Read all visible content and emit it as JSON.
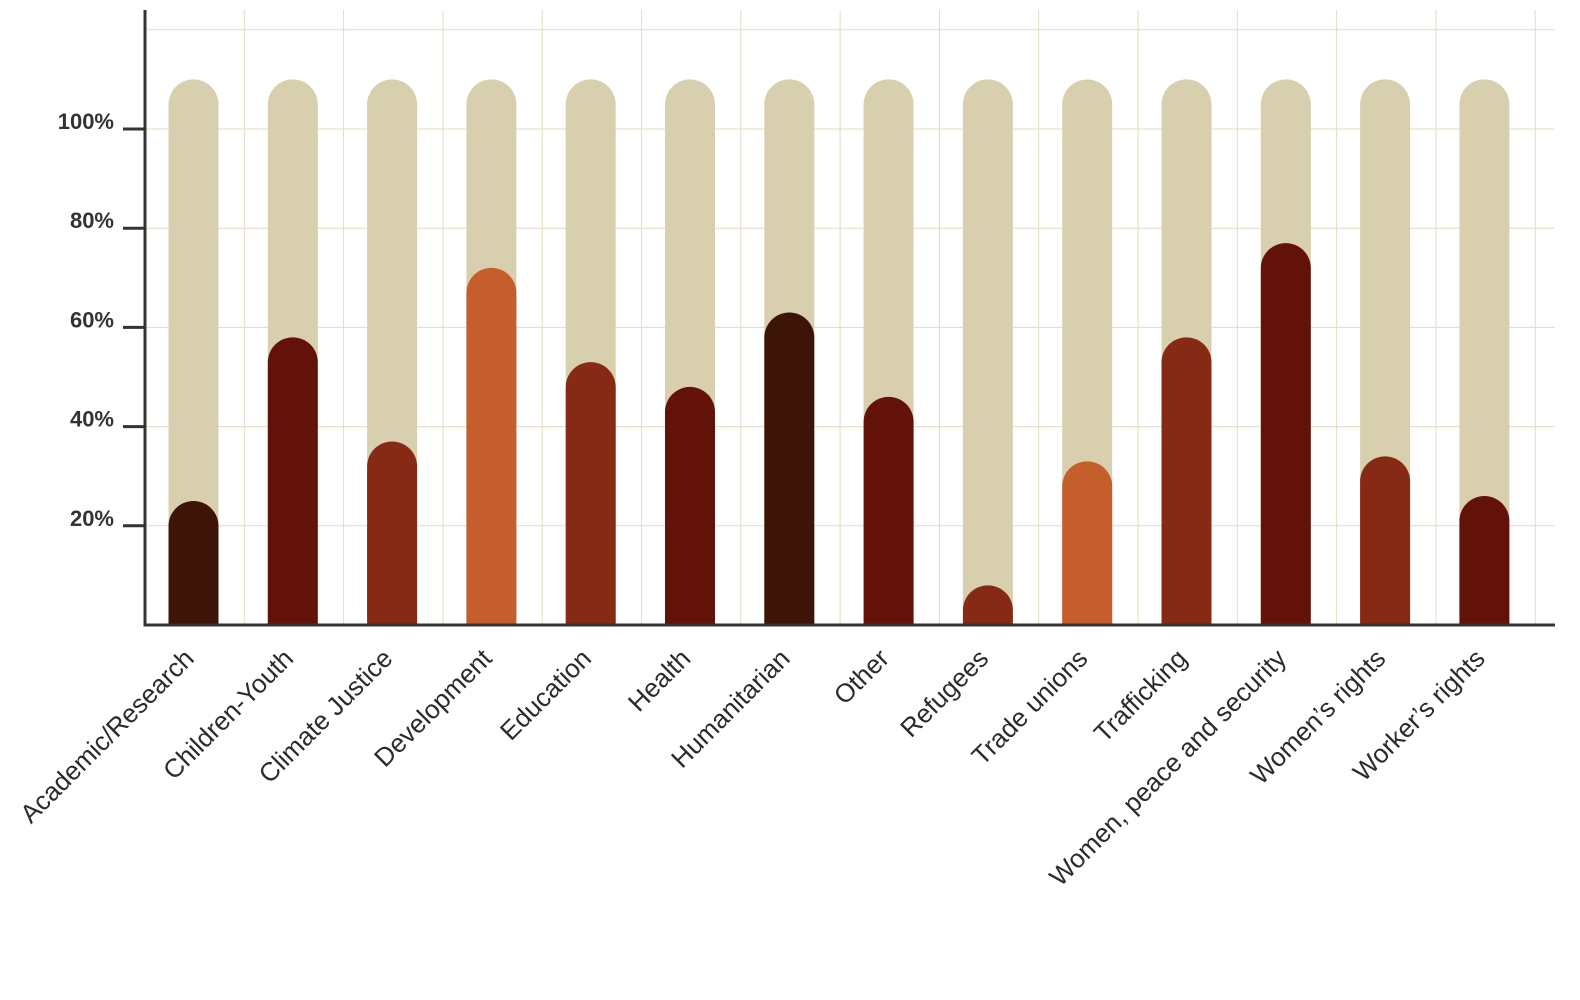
{
  "chart_data": {
    "type": "bar",
    "title": "",
    "xlabel": "",
    "ylabel": "",
    "ylim": [
      0,
      125
    ],
    "background_max": 110,
    "yticks": [
      20,
      40,
      60,
      80,
      100
    ],
    "ytick_labels": [
      "20%",
      "40%",
      "60%",
      "80%",
      "100%"
    ],
    "grid": true,
    "categories": [
      "Academic/Research",
      "Children-Youth",
      "Climate Justice",
      "Development",
      "Education",
      "Health",
      "Humanitarian",
      "Other",
      "Refugees",
      "Trade unions",
      "Trafficking",
      "Women, peace and security",
      "Women’s rights",
      "Worker’s rights"
    ],
    "values": [
      25,
      58,
      37,
      72,
      53,
      48,
      63,
      46,
      8,
      33,
      58,
      77,
      34,
      26
    ],
    "colors": [
      "#3d1408",
      "#621209",
      "#862a16",
      "#c45f2d",
      "#862a16",
      "#621209",
      "#3d1408",
      "#621209",
      "#862a16",
      "#c45f2d",
      "#862a16",
      "#621209",
      "#862a16",
      "#621209"
    ],
    "track_color": "#d8cfae",
    "grid_color": "#e3dcc2",
    "axis_color": "#333333"
  }
}
